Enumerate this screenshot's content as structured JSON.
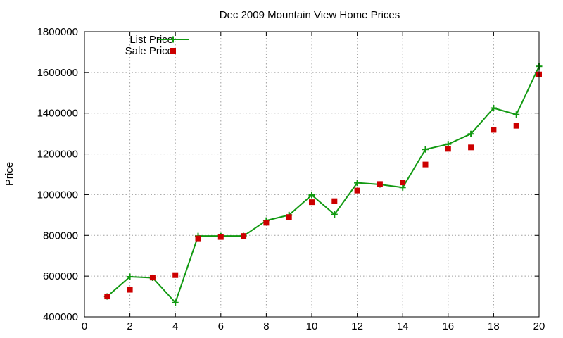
{
  "chart_data": {
    "type": "line",
    "title": "Dec 2009 Mountain View Home Prices",
    "xlabel": "",
    "ylabel": "Price",
    "xlim": [
      0,
      20
    ],
    "ylim": [
      400000,
      1800000
    ],
    "xticks": [
      0,
      2,
      4,
      6,
      8,
      10,
      12,
      14,
      16,
      18,
      20
    ],
    "yticks": [
      400000,
      600000,
      800000,
      1000000,
      1200000,
      1400000,
      1600000,
      1800000
    ],
    "x_tick_labels": [
      "0",
      "2",
      "4",
      "6",
      "8",
      "10",
      "12",
      "14",
      "16",
      "18",
      "20"
    ],
    "y_tick_labels": [
      "400000",
      "600000",
      "800000",
      "1000000",
      "1200000",
      "1400000",
      "1600000",
      "1800000"
    ],
    "grid": true,
    "legend_position": "top-left",
    "x": [
      1,
      2,
      3,
      4,
      5,
      6,
      7,
      8,
      9,
      10,
      11,
      12,
      13,
      14,
      15,
      16,
      17,
      18,
      19,
      20
    ],
    "series": [
      {
        "name": "List Price",
        "style": "line+cross",
        "color": "#119911",
        "values": [
          500000,
          597000,
          592000,
          470000,
          797000,
          797000,
          797000,
          873000,
          900000,
          998000,
          903000,
          1058000,
          1050000,
          1035000,
          1222000,
          1248000,
          1298000,
          1425000,
          1393000,
          1630000
        ]
      },
      {
        "name": "Sale Price",
        "style": "square",
        "color": "#cc0000",
        "values": [
          500000,
          533000,
          593000,
          605000,
          785000,
          792000,
          797000,
          862000,
          890000,
          963000,
          968000,
          1020000,
          1052000,
          1060000,
          1148000,
          1225000,
          1232000,
          1318000,
          1338000,
          1590000
        ]
      }
    ]
  }
}
